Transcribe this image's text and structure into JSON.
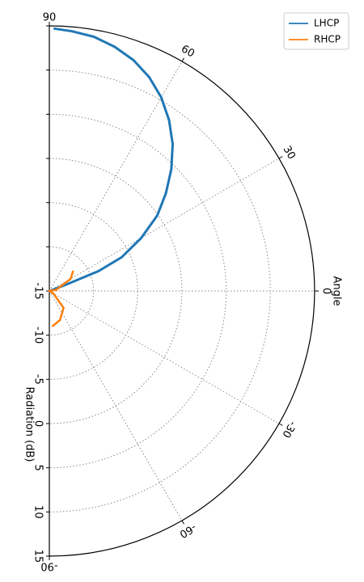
{
  "chart_data": {
    "type": "line",
    "projection": "polar-half",
    "radial_axis": {
      "label": "Radiation (dB)",
      "range": [
        -15,
        15
      ],
      "ticks": [
        -15,
        -10,
        -5,
        0,
        5,
        10,
        15
      ],
      "tick_labels": [
        "-15",
        "-10",
        "-5",
        "0",
        "5",
        "10",
        "15"
      ]
    },
    "angular_axis": {
      "label": "Angle",
      "range_deg": [
        -90,
        90
      ],
      "ticks": [
        90,
        60,
        30,
        0,
        -30,
        -60,
        -90
      ],
      "tick_labels": [
        "90",
        "60",
        "30",
        "0",
        "-30",
        "-60",
        "-90"
      ]
    },
    "grid": true,
    "legend": {
      "placement": "top-right"
    },
    "series": [
      {
        "name": "LHCP",
        "color": "#1f77b4",
        "points": [
          {
            "angle": 89,
            "db": 14.7
          },
          {
            "angle": 85,
            "db": 14.5
          },
          {
            "angle": 80,
            "db": 14.2
          },
          {
            "angle": 75,
            "db": 13.6
          },
          {
            "angle": 70,
            "db": 12.8
          },
          {
            "angle": 65,
            "db": 11.7
          },
          {
            "angle": 60,
            "db": 10.3
          },
          {
            "angle": 55,
            "db": 8.6
          },
          {
            "angle": 50,
            "db": 6.7
          },
          {
            "angle": 45,
            "db": 4.5
          },
          {
            "angle": 40,
            "db": 2.2
          },
          {
            "angle": 35,
            "db": -0.1
          },
          {
            "angle": 30,
            "db": -3.0
          },
          {
            "angle": 25,
            "db": -6.0
          },
          {
            "angle": 22,
            "db": -9.0
          },
          {
            "angle": 21,
            "db": -13.0
          },
          {
            "angle": 20,
            "db": -14.8
          }
        ]
      },
      {
        "name": "RHCP",
        "color": "#ff7f0e",
        "points": [
          {
            "angle": 40,
            "db": -11.5
          },
          {
            "angle": 30,
            "db": -12.2
          },
          {
            "angle": 10,
            "db": -14.2
          },
          {
            "angle": 0,
            "db": -15.0
          },
          {
            "angle": -30,
            "db": -14.5
          },
          {
            "angle": -50,
            "db": -12.5
          },
          {
            "angle": -70,
            "db": -11.5
          },
          {
            "angle": -85,
            "db": -11.0
          }
        ]
      }
    ]
  }
}
